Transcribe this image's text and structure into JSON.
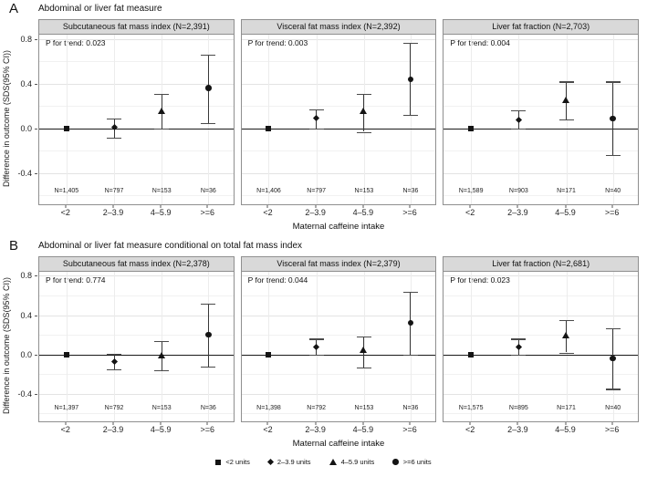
{
  "chart_data": {
    "type": "scatter",
    "ylabel": "Difference in outcome (SDS(95% CI))",
    "xlabel": "Maternal caffeine intake",
    "ylim": [
      -0.68,
      0.84
    ],
    "grid": true,
    "y_major_ticks": [
      0.8,
      0.4,
      0.0,
      -0.4
    ],
    "y_tick_labels": [
      "0.8",
      "0.4",
      "0.0",
      "-0.4"
    ],
    "y_minor_ticks": [
      0.6,
      0.2,
      -0.2,
      -0.6
    ],
    "categories": [
      "<2",
      "2–3.9",
      "4–5.9",
      ">=6"
    ],
    "legend_position": "bottom",
    "legend": [
      {
        "marker": "square",
        "label": "<2 units"
      },
      {
        "marker": "diamond",
        "label": "2–3.9 units"
      },
      {
        "marker": "triangle",
        "label": "4–5.9 units"
      },
      {
        "marker": "circle",
        "label": ">=6 units"
      }
    ],
    "rows": [
      {
        "letter": "A",
        "title": "Abdominal or liver fat measure",
        "panels": [
          {
            "title": "Subcutaneous fat mass index (N=2,391)",
            "p_for_trend": "P for trend: 0.023",
            "n_labels": [
              "N=1,405",
              "N=797",
              "N=153",
              "N=36"
            ],
            "points": [
              {
                "marker": "square",
                "y": 0.0,
                "lo": null,
                "hi": null
              },
              {
                "marker": "diamond",
                "y": 0.01,
                "lo": -0.08,
                "hi": 0.09
              },
              {
                "marker": "triangle",
                "y": 0.15,
                "lo": 0.0,
                "hi": 0.31
              },
              {
                "marker": "circle",
                "y": 0.36,
                "lo": 0.05,
                "hi": 0.66
              }
            ]
          },
          {
            "title": "Visceral fat mass index (N=2,392)",
            "p_for_trend": "P for trend: 0.003",
            "n_labels": [
              "N=1,406",
              "N=797",
              "N=153",
              "N=36"
            ],
            "points": [
              {
                "marker": "square",
                "y": 0.0,
                "lo": null,
                "hi": null
              },
              {
                "marker": "diamond",
                "y": 0.09,
                "lo": 0.0,
                "hi": 0.17
              },
              {
                "marker": "triangle",
                "y": 0.15,
                "lo": -0.03,
                "hi": 0.31
              },
              {
                "marker": "circle",
                "y": 0.44,
                "lo": 0.12,
                "hi": 0.77
              }
            ]
          },
          {
            "title": "Liver fat fraction (N=2,703)",
            "p_for_trend": "P for trend: 0.004",
            "n_labels": [
              "N=1,589",
              "N=903",
              "N=171",
              "N=40"
            ],
            "points": [
              {
                "marker": "square",
                "y": 0.0,
                "lo": null,
                "hi": null
              },
              {
                "marker": "diamond",
                "y": 0.08,
                "lo": 0.0,
                "hi": 0.16
              },
              {
                "marker": "triangle",
                "y": 0.25,
                "lo": 0.08,
                "hi": 0.42
              },
              {
                "marker": "circle",
                "y": 0.09,
                "lo": -0.24,
                "hi": 0.42
              }
            ]
          }
        ]
      },
      {
        "letter": "B",
        "title": "Abdominal or liver fat measure conditional on total fat mass index",
        "panels": [
          {
            "title": "Subcutaneous fat mass index (N=2,378)",
            "p_for_trend": "P for trend: 0.774",
            "n_labels": [
              "N=1,397",
              "N=792",
              "N=153",
              "N=36"
            ],
            "points": [
              {
                "marker": "square",
                "y": 0.0,
                "lo": null,
                "hi": null
              },
              {
                "marker": "diamond",
                "y": -0.07,
                "lo": -0.15,
                "hi": 0.01
              },
              {
                "marker": "triangle",
                "y": -0.01,
                "lo": -0.16,
                "hi": 0.14
              },
              {
                "marker": "circle",
                "y": 0.2,
                "lo": -0.12,
                "hi": 0.52
              }
            ]
          },
          {
            "title": "Visceral fat mass index (N=2,379)",
            "p_for_trend": "P for trend: 0.044",
            "n_labels": [
              "N=1,398",
              "N=792",
              "N=153",
              "N=36"
            ],
            "points": [
              {
                "marker": "square",
                "y": 0.0,
                "lo": null,
                "hi": null
              },
              {
                "marker": "diamond",
                "y": 0.08,
                "lo": 0.0,
                "hi": 0.16
              },
              {
                "marker": "triangle",
                "y": 0.04,
                "lo": -0.13,
                "hi": 0.18
              },
              {
                "marker": "circle",
                "y": 0.32,
                "lo": 0.0,
                "hi": 0.64
              }
            ]
          },
          {
            "title": "Liver fat fraction (N=2,681)",
            "p_for_trend": "P for trend: 0.023",
            "n_labels": [
              "N=1,575",
              "N=895",
              "N=171",
              "N=40"
            ],
            "points": [
              {
                "marker": "square",
                "y": 0.0,
                "lo": null,
                "hi": null
              },
              {
                "marker": "diamond",
                "y": 0.08,
                "lo": 0.0,
                "hi": 0.16
              },
              {
                "marker": "triangle",
                "y": 0.19,
                "lo": 0.02,
                "hi": 0.35
              },
              {
                "marker": "circle",
                "y": -0.04,
                "lo": -0.35,
                "hi": 0.27
              }
            ]
          }
        ]
      }
    ]
  }
}
